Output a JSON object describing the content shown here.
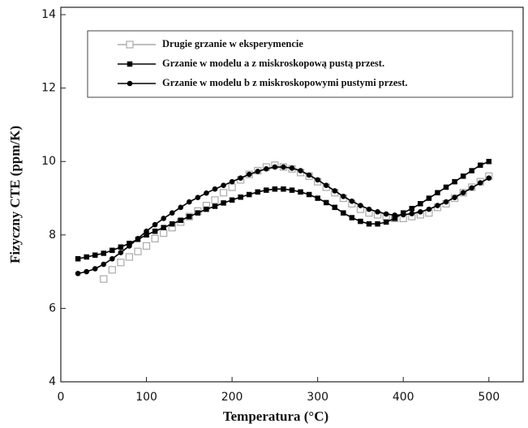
{
  "chart_data": {
    "type": "line",
    "xlabel": "Temperatura  (°C)",
    "ylabel": "Fizyczny  CTE (ppm/K)",
    "xlim": [
      0,
      540
    ],
    "xticks": [
      0,
      100,
      200,
      300,
      400,
      500
    ],
    "ylim": [
      4,
      14.2
    ],
    "yticks": [
      4,
      6,
      8,
      10,
      12,
      14
    ],
    "legend": "upper left",
    "series": [
      {
        "name": "Drugie grzanie w eksperymencie",
        "color": "#aaaaaa",
        "marker": "square-open",
        "line": false,
        "x": [
          50,
          60,
          70,
          80,
          90,
          100,
          110,
          120,
          130,
          140,
          150,
          160,
          170,
          180,
          190,
          200,
          210,
          220,
          230,
          240,
          250,
          260,
          270,
          280,
          290,
          300,
          310,
          320,
          330,
          340,
          350,
          360,
          370,
          380,
          390,
          400,
          410,
          420,
          430,
          440,
          450,
          460,
          470,
          480,
          490,
          500
        ],
        "values": [
          6.8,
          7.05,
          7.25,
          7.4,
          7.55,
          7.7,
          7.9,
          8.05,
          8.2,
          8.35,
          8.5,
          8.65,
          8.8,
          8.95,
          9.15,
          9.3,
          9.5,
          9.65,
          9.75,
          9.85,
          9.9,
          9.85,
          9.8,
          9.7,
          9.6,
          9.45,
          9.3,
          9.15,
          9.0,
          8.85,
          8.7,
          8.6,
          8.55,
          8.5,
          8.45,
          8.45,
          8.5,
          8.55,
          8.6,
          8.75,
          8.85,
          9.0,
          9.15,
          9.3,
          9.45,
          9.6
        ]
      },
      {
        "name": "Grzanie w modelu a z miskroskopową pustą przest.",
        "color": "#000000",
        "marker": "square",
        "line": true,
        "x": [
          20,
          30,
          40,
          50,
          60,
          70,
          80,
          90,
          100,
          110,
          120,
          130,
          140,
          150,
          160,
          170,
          180,
          190,
          200,
          210,
          220,
          230,
          240,
          250,
          260,
          270,
          280,
          290,
          300,
          310,
          320,
          330,
          340,
          350,
          360,
          370,
          380,
          390,
          400,
          410,
          420,
          430,
          440,
          450,
          460,
          470,
          480,
          490,
          500
        ],
        "values": [
          7.35,
          7.4,
          7.45,
          7.5,
          7.58,
          7.67,
          7.77,
          7.88,
          8.0,
          8.1,
          8.2,
          8.3,
          8.4,
          8.5,
          8.6,
          8.7,
          8.78,
          8.87,
          8.95,
          9.03,
          9.1,
          9.17,
          9.22,
          9.25,
          9.25,
          9.22,
          9.17,
          9.1,
          9.0,
          8.88,
          8.75,
          8.6,
          8.47,
          8.37,
          8.3,
          8.3,
          8.35,
          8.45,
          8.6,
          8.72,
          8.85,
          9.0,
          9.15,
          9.3,
          9.45,
          9.6,
          9.75,
          9.9,
          10.0
        ]
      },
      {
        "name": "Grzanie w modelu b z miskroskopowymi pustymi przest.",
        "color": "#000000",
        "marker": "circle",
        "line": true,
        "x": [
          20,
          30,
          40,
          50,
          60,
          70,
          80,
          90,
          100,
          110,
          120,
          130,
          140,
          150,
          160,
          170,
          180,
          190,
          200,
          210,
          220,
          230,
          240,
          250,
          260,
          270,
          280,
          290,
          300,
          310,
          320,
          330,
          340,
          350,
          360,
          370,
          380,
          390,
          400,
          410,
          420,
          430,
          440,
          450,
          460,
          470,
          480,
          490,
          500
        ],
        "values": [
          6.95,
          7.0,
          7.08,
          7.2,
          7.35,
          7.52,
          7.7,
          7.9,
          8.1,
          8.28,
          8.45,
          8.6,
          8.75,
          8.9,
          9.02,
          9.14,
          9.25,
          9.35,
          9.45,
          9.55,
          9.65,
          9.73,
          9.8,
          9.85,
          9.85,
          9.82,
          9.75,
          9.63,
          9.5,
          9.35,
          9.2,
          9.05,
          8.92,
          8.8,
          8.7,
          8.63,
          8.57,
          8.54,
          8.55,
          8.58,
          8.63,
          8.7,
          8.8,
          8.9,
          9.02,
          9.15,
          9.28,
          9.42,
          9.55
        ]
      }
    ]
  }
}
